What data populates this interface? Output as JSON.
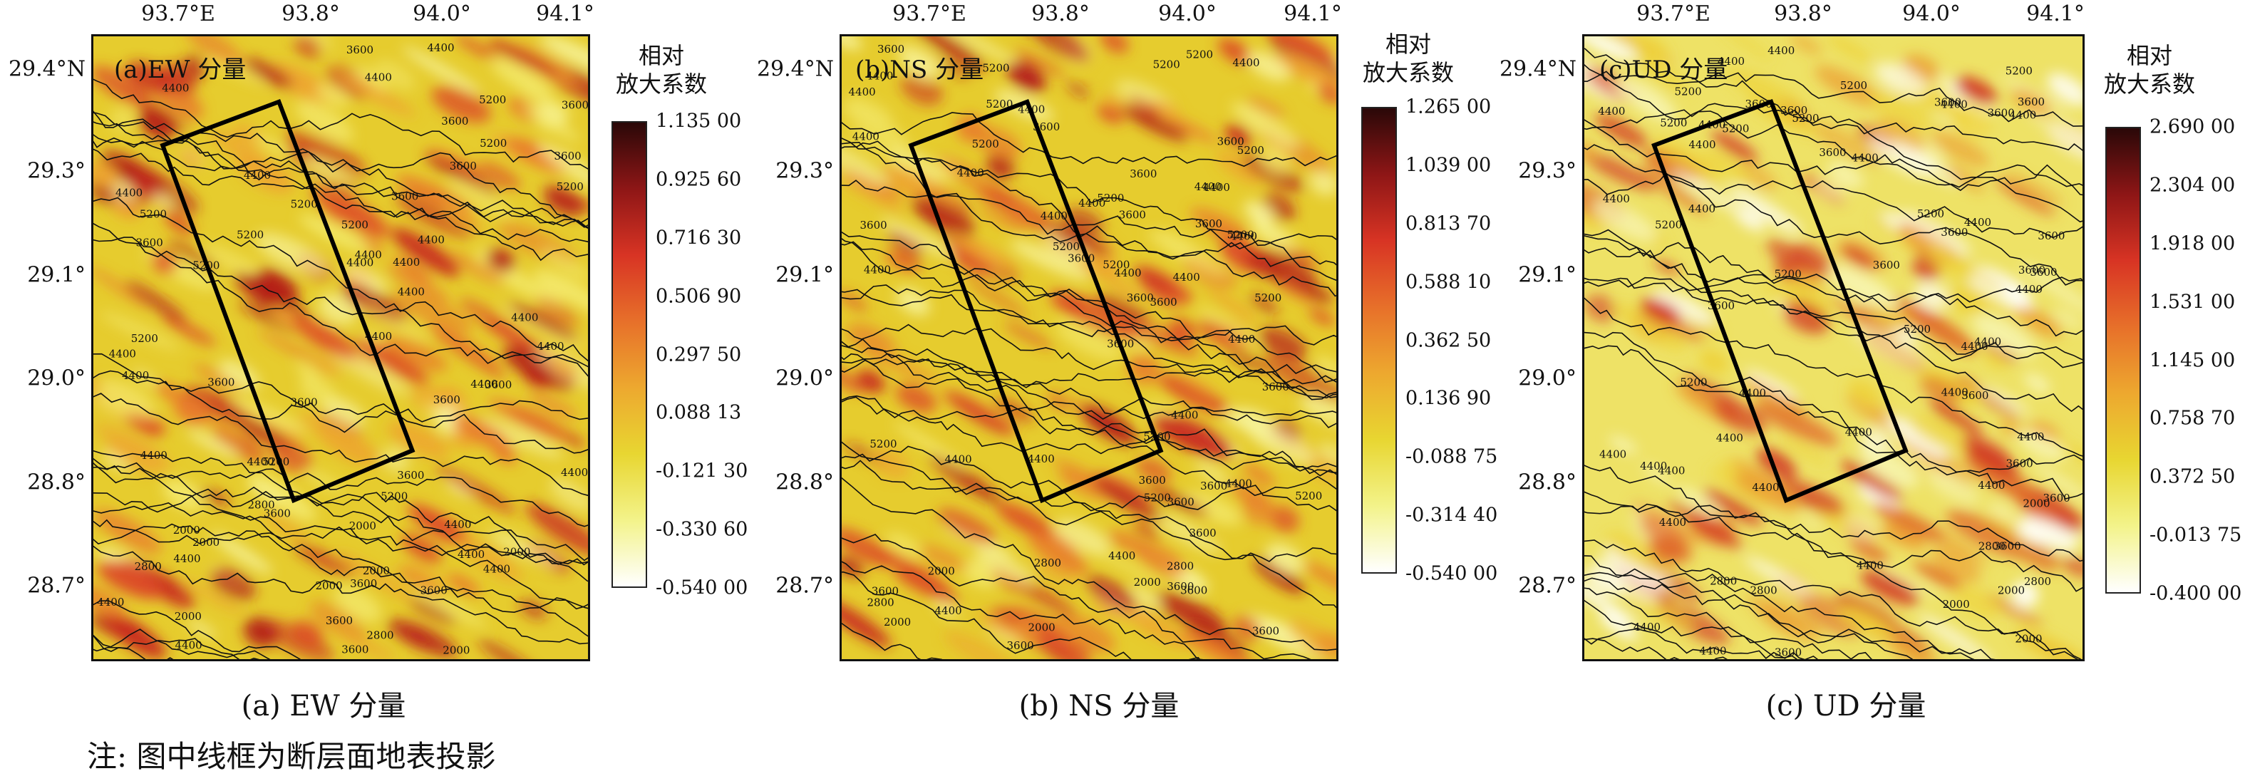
{
  "longitude_ticks": [
    "93.7°E",
    "93.8°",
    "94.0°",
    "94.1°"
  ],
  "latitude_ticks": [
    "29.4°N",
    "29.3°",
    "29.1°",
    "29.0°",
    "28.8°",
    "28.7°"
  ],
  "colorbar_title_line1": "相对",
  "colorbar_title_line2": "放大系数",
  "contour_levels": [
    "2000",
    "2800",
    "3600",
    "4400",
    "5200"
  ],
  "colormap": [
    "#ffffff",
    "#f3f38a",
    "#e8d631",
    "#eda82f",
    "#e7702a",
    "#d83424",
    "#8e1616",
    "#2a0808"
  ],
  "contour_color": "#111111",
  "fault_outline_color": "#000000",
  "panels": [
    {
      "id": "ew",
      "title": "(a)EW 分量",
      "caption": "(a) EW 分量",
      "colorbar_ticks": [
        "1.135 00",
        "0.925 60",
        "0.716 30",
        "0.506 90",
        "0.297 50",
        "0.088 13",
        "-0.121 30",
        "-0.330 60",
        "-0.540 00"
      ],
      "value_range": [
        -0.54,
        1.135
      ]
    },
    {
      "id": "ns",
      "title": "(b)NS 分量",
      "caption": "(b) NS 分量",
      "colorbar_ticks": [
        "1.265 00",
        "1.039 00",
        "0.813 70",
        "0.588 10",
        "0.362 50",
        "0.136 90",
        "-0.088 75",
        "-0.314 40",
        "-0.540 00"
      ],
      "value_range": [
        -0.54,
        1.265
      ]
    },
    {
      "id": "ud",
      "title": "(c)UD 分量",
      "caption": "(c) UD 分量",
      "colorbar_ticks": [
        "2.690 00",
        "2.304 00",
        "1.918 00",
        "1.531 00",
        "1.145 00",
        "0.758 70",
        "0.372 50",
        "-0.013 75",
        "-0.400 00"
      ],
      "value_range": [
        -0.4,
        2.69
      ]
    }
  ],
  "note": "注: 图中线框为断层面地表投影"
}
